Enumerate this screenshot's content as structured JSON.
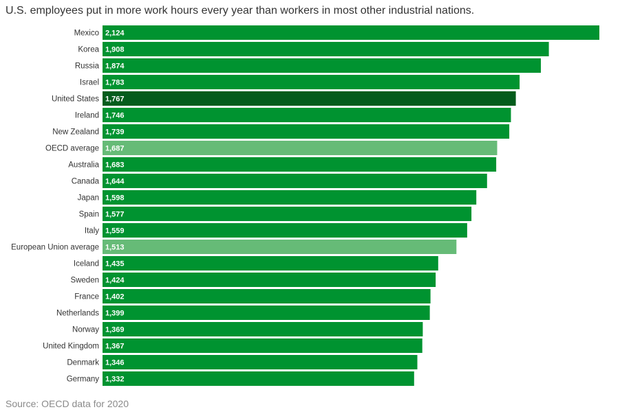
{
  "title": "U.S. employees put in more work hours every year than workers in most other industrial nations.",
  "source": "Source: OECD data for 2020",
  "colors": {
    "default": "#009330",
    "highlight": "#045c1c",
    "average": "#66bb77"
  },
  "chart_data": {
    "type": "bar",
    "orientation": "horizontal",
    "title": "U.S. employees put in more work hours every year than workers in most other industrial nations.",
    "xlim": [
      0,
      2124
    ],
    "grid": false,
    "legend": "none",
    "categories": [
      "Mexico",
      "Korea",
      "Russia",
      "Israel",
      "United States",
      "Ireland",
      "New Zealand",
      "OECD average",
      "Australia",
      "Canada",
      "Japan",
      "Spain",
      "Italy",
      "European Union average",
      "Iceland",
      "Sweden",
      "France",
      "Netherlands",
      "Norway",
      "United Kingdom",
      "Denmark",
      "Germany"
    ],
    "values": [
      2124,
      1908,
      1874,
      1783,
      1767,
      1746,
      1739,
      1687,
      1683,
      1644,
      1598,
      1577,
      1559,
      1513,
      1435,
      1424,
      1402,
      1399,
      1369,
      1367,
      1346,
      1332
    ],
    "value_labels": [
      "2,124",
      "1,908",
      "1,874",
      "1,783",
      "1,767",
      "1,746",
      "1,739",
      "1,687",
      "1,683",
      "1,644",
      "1,598",
      "1,577",
      "1,559",
      "1,513",
      "1,435",
      "1,424",
      "1,402",
      "1,399",
      "1,369",
      "1,367",
      "1,346",
      "1,332"
    ],
    "bar_colors": [
      "default",
      "default",
      "default",
      "default",
      "highlight",
      "default",
      "default",
      "average",
      "default",
      "default",
      "default",
      "default",
      "default",
      "average",
      "default",
      "default",
      "default",
      "default",
      "default",
      "default",
      "default",
      "default"
    ]
  }
}
